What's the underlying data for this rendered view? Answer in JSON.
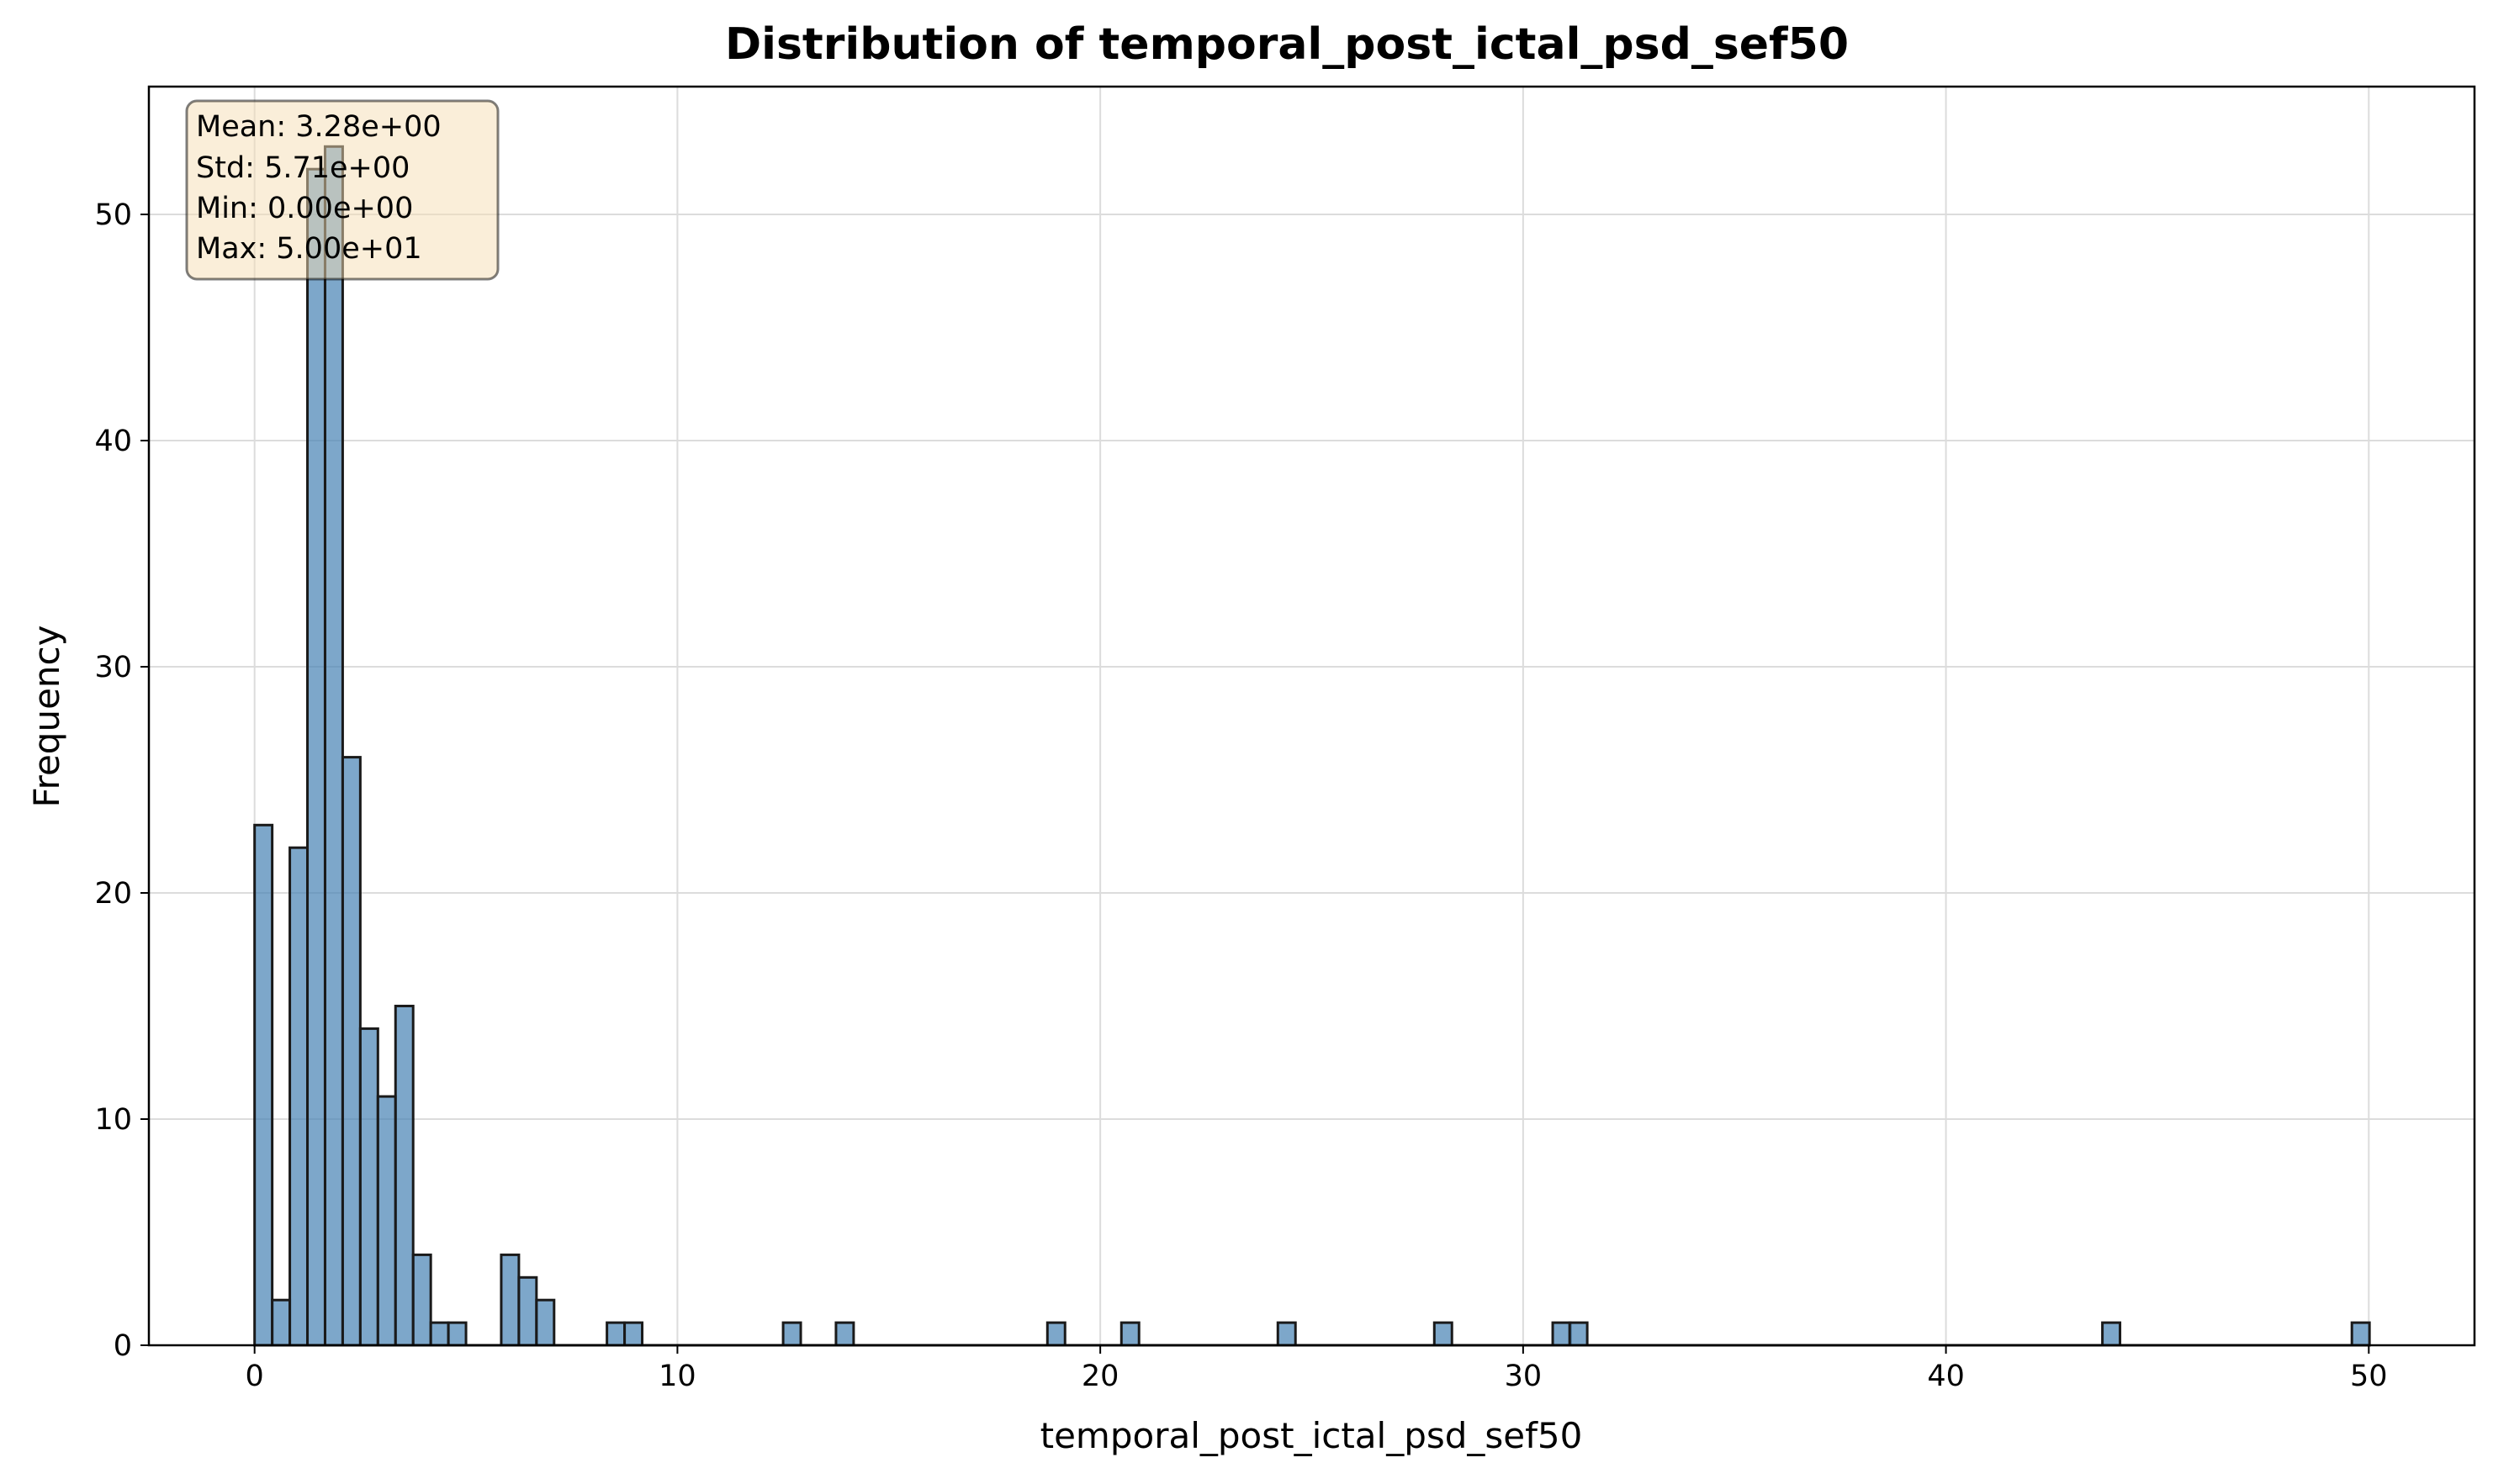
{
  "chart_data": {
    "type": "bar",
    "title": "Distribution of temporal_post_ictal_psd_sef50",
    "xlabel": "temporal_post_ictal_psd_sef50",
    "ylabel": "Frequency",
    "xlim": [
      -2.5,
      52.5
    ],
    "ylim": [
      0,
      55.65
    ],
    "grid": true,
    "bin_width": 0.4167,
    "x_ticks": [
      0,
      10,
      20,
      30,
      40,
      50
    ],
    "y_ticks": [
      0,
      10,
      20,
      30,
      40,
      50
    ],
    "bars": [
      {
        "x0": 0.0,
        "count": 23
      },
      {
        "x0": 0.4167,
        "count": 2
      },
      {
        "x0": 0.8333,
        "count": 22
      },
      {
        "x0": 1.25,
        "count": 52
      },
      {
        "x0": 1.6667,
        "count": 53
      },
      {
        "x0": 2.0833,
        "count": 26
      },
      {
        "x0": 2.5,
        "count": 14
      },
      {
        "x0": 2.9167,
        "count": 11
      },
      {
        "x0": 3.3333,
        "count": 15
      },
      {
        "x0": 3.75,
        "count": 4
      },
      {
        "x0": 4.1667,
        "count": 1
      },
      {
        "x0": 4.5833,
        "count": 1
      },
      {
        "x0": 5.8333,
        "count": 4
      },
      {
        "x0": 6.25,
        "count": 3
      },
      {
        "x0": 6.6667,
        "count": 2
      },
      {
        "x0": 8.3333,
        "count": 1
      },
      {
        "x0": 8.75,
        "count": 1
      },
      {
        "x0": 12.5,
        "count": 1
      },
      {
        "x0": 13.75,
        "count": 1
      },
      {
        "x0": 18.75,
        "count": 1
      },
      {
        "x0": 20.5,
        "count": 1
      },
      {
        "x0": 24.2,
        "count": 1
      },
      {
        "x0": 27.9,
        "count": 1
      },
      {
        "x0": 30.7,
        "count": 1
      },
      {
        "x0": 31.1,
        "count": 1
      },
      {
        "x0": 43.7,
        "count": 1
      },
      {
        "x0": 49.6,
        "count": 1
      }
    ],
    "stats_box": {
      "lines": [
        "Mean: 3.28e+00",
        "Std: 5.71e+00",
        "Min: 0.00e+00",
        "Max: 5.00e+01"
      ],
      "placement": "top-left"
    },
    "colors": {
      "bar_fill": "#4682b4",
      "bar_edge": "#1a1a1a",
      "stats_fill": "#f5deb3",
      "stats_edge": "#000000"
    }
  }
}
